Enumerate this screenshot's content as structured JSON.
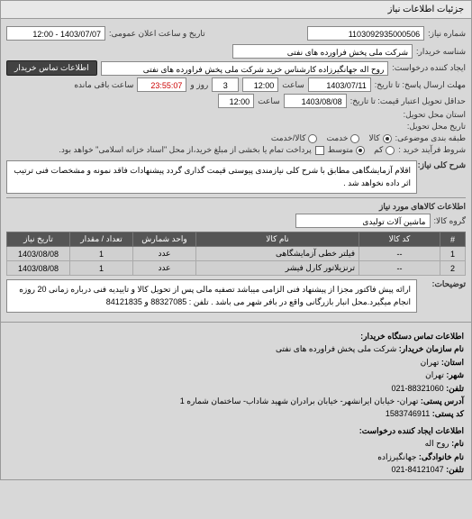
{
  "tab_title": "جزئیات اطلاعات نیاز",
  "header": {
    "req_number_label": "شماره نیاز:",
    "req_number": "1103092935000506",
    "announce_label": "تاریخ و ساعت اعلان عمومی:",
    "announce_value": "1403/07/07 - 12:00",
    "buyer_label": "شناسه خریدار:",
    "buyer_value": "شرکت ملی پخش فراورده های نفتی",
    "creator_label": "ایجاد کننده درخواست:",
    "creator_value": "روح اله جهانگیرزاده کارشناس خرید شرکت ملی پخش فراورده های نفتی",
    "contact_btn": "اطلاعات تماس خریدار",
    "deadline_send_label": "مهلت ارسال پاسخ: تا تاریخ:",
    "deadline_send_date": "1403/07/11",
    "time_label": "ساعت",
    "deadline_send_time": "12:00",
    "remain_days": "3",
    "day_word": "روز و",
    "remain_time": "23:55:07",
    "remain_suffix": "ساعت باقی مانده",
    "delivery_deadline_label": "حداقل تحویل اعتبار قیمت: تا تاریخ:",
    "delivery_deadline_date": "1403/08/08",
    "delivery_deadline_time": "12:00",
    "delivery_place_label": "استان محل تحویل:",
    "delivery_date_label": "تاریخ محل تحویل:",
    "packaging_label": "طبقه بندی موضوعی:",
    "pkg_opt_kala": "کالا",
    "pkg_opt_khedmat": "خدمت",
    "pkg_opt_both": "کالا/خدمت",
    "purchase_terms_label": "شروط فرآیند خرید :",
    "term_opt_low": "کم",
    "term_opt_mid": "متوسط",
    "term_note": "پرداخت تمام یا بخشی از مبلغ خرید،از محل \"اسناد خزانه اسلامی\" خواهد بود.",
    "desc_label": "شرح کلی نیاز:",
    "desc_text": "اقلام آزمایشگاهی مطابق با شرح کلی نیازمندی پیوستی قیمت گذاری گردد پیشنهادات فاقد نمونه و مشخصات فنی ترتیب اثر داده نخواهد شد .",
    "goods_needed_label": "اطلاعات کالاهای مورد نیاز",
    "goods_group_label": "گروه کالا:",
    "goods_group_value": "ماشین آلات تولیدی"
  },
  "table": {
    "columns": [
      "#",
      "کد کالا",
      "نام کالا",
      "واحد شمارش",
      "تعداد / مقدار",
      "تاریخ نیاز"
    ],
    "rows": [
      [
        "1",
        "--",
        "فیلتر خطی آزمایشگاهی",
        "عدد",
        "1",
        "1403/08/08"
      ],
      [
        "2",
        "--",
        "ترنزیلاتور کارل فیشر",
        "عدد",
        "1",
        "1403/08/08"
      ]
    ],
    "col_widths": [
      "28px",
      "90px",
      "auto",
      "70px",
      "70px",
      "70px"
    ]
  },
  "notes": {
    "label": "توضیحات:",
    "text": "ارائه پیش فاکتور مجزا از پیشنهاد فنی الزامی میباشد تصفیه مالی پس از تحویل کالا و تاییدیه فنی درباره زمانی 20 روزه انجام میگیرد.محل انبار بازرگانی واقع در بافر شهر می باشد . تلفن : 88327085 و 84121835"
  },
  "footer": {
    "contact_section": "اطلاعات تماس دستگاه خریدار:",
    "org_label": "نام سازمان خریدار:",
    "org_value": "شرکت ملی پخش فراورده های نفتی",
    "province_label": "استان:",
    "province_value": "تهران",
    "city_label": "شهر:",
    "city_value": "تهران",
    "tel_label": "تلفن:",
    "tel_value": "88321060-021",
    "addr_label": "آدرس پستی:",
    "addr_value": "تهران- خیابان ایرانشهر- خیابان برادران شهید شاداب- ساختمان شماره 1",
    "postal_label": "کد پستی:",
    "postal_value": "1583746911",
    "creator_section": "اطلاعات ایجاد کننده درخواست:",
    "name_label": "نام:",
    "name_value": "روح اله",
    "family_label": "نام خانوادگی:",
    "family_value": "جهانگیرزاده",
    "creator_tel_label": "تلفن:",
    "creator_tel_value": "84121047-021"
  }
}
